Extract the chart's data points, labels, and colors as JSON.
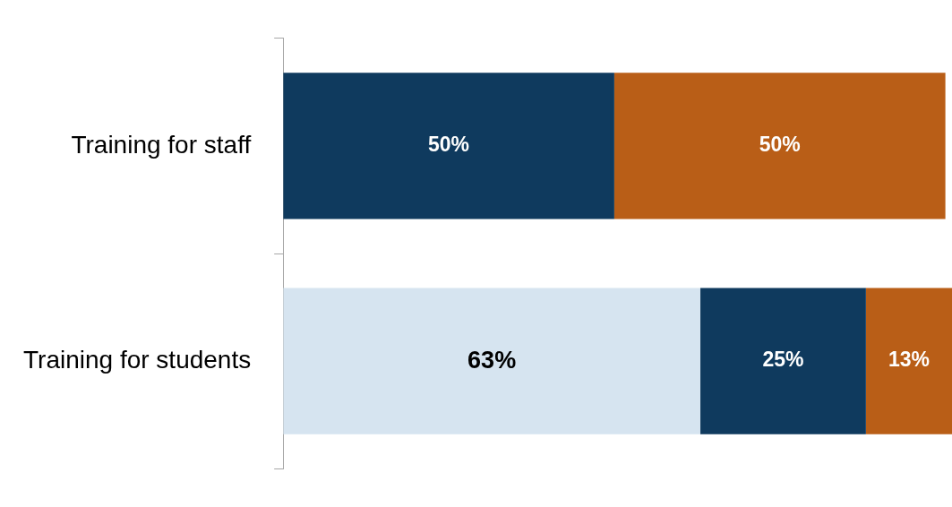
{
  "chart_data": {
    "type": "bar",
    "orientation": "horizontal",
    "stacked": true,
    "categories": [
      "Training for staff",
      "Training for students"
    ],
    "series": [
      {
        "color": "#d6e4f0",
        "values": [
          null,
          63
        ],
        "value_labels": [
          null,
          "63%"
        ]
      },
      {
        "color": "#0f3a5e",
        "values": [
          50,
          25
        ],
        "value_labels": [
          "50%",
          "25%"
        ]
      },
      {
        "color": "#b95e17",
        "values": [
          50,
          13
        ],
        "value_labels": [
          "50%",
          "13%"
        ]
      }
    ],
    "xlim": [
      0,
      101
    ],
    "tick_labels": "y",
    "legend": false
  }
}
